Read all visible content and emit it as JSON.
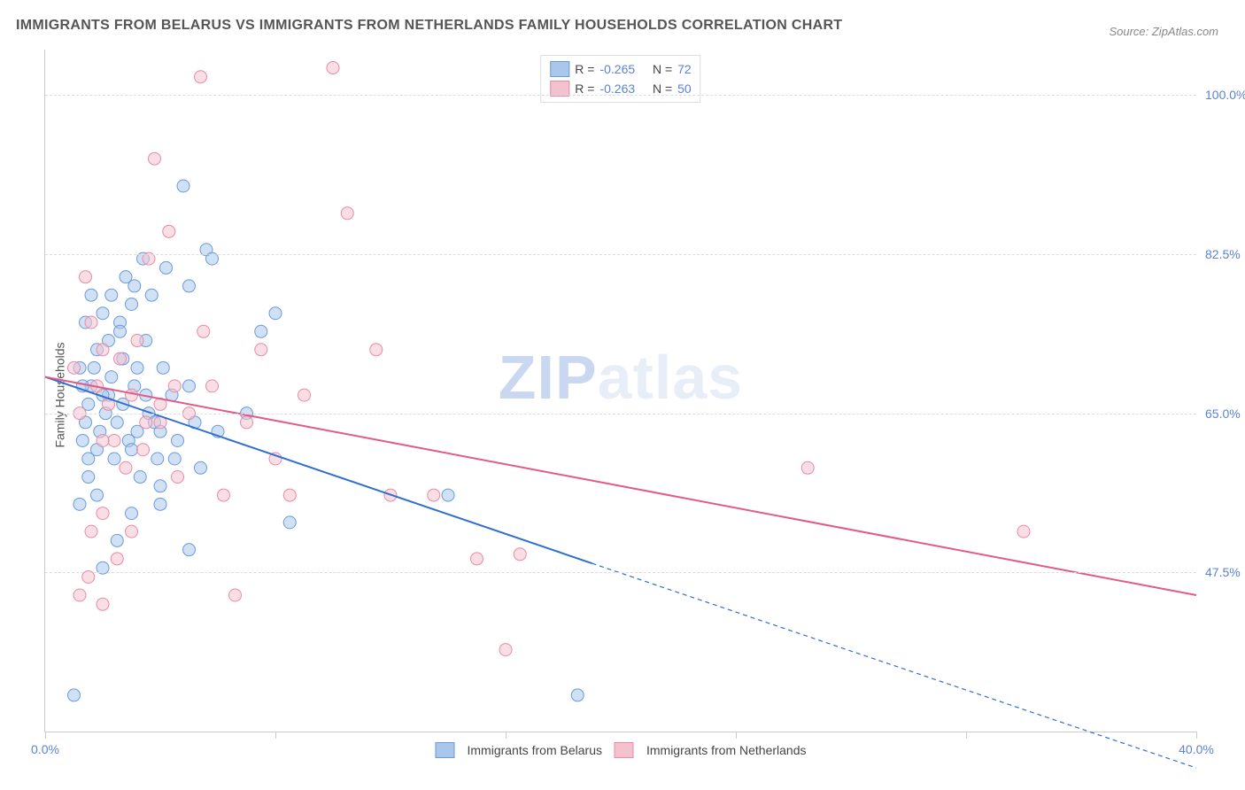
{
  "title": "IMMIGRANTS FROM BELARUS VS IMMIGRANTS FROM NETHERLANDS FAMILY HOUSEHOLDS CORRELATION CHART",
  "source": "Source: ZipAtlas.com",
  "ylabel": "Family Households",
  "watermark_a": "ZIP",
  "watermark_b": "atlas",
  "chart": {
    "type": "scatter-correlation",
    "xlim": [
      0,
      40
    ],
    "ylim": [
      30,
      105
    ],
    "yticks": [
      47.5,
      65.0,
      82.5,
      100.0
    ],
    "ytick_labels": [
      "47.5%",
      "65.0%",
      "82.5%",
      "100.0%"
    ],
    "xtick_positions": [
      0,
      8,
      16,
      24,
      32,
      40
    ],
    "xtick_labels": [
      "0.0%",
      "",
      "",
      "",
      "",
      "40.0%"
    ],
    "background_color": "#ffffff",
    "grid_color": "#dddddd",
    "marker_radius": 7,
    "marker_opacity": 0.55,
    "line_width": 2
  },
  "series": [
    {
      "name": "Immigrants from Belarus",
      "color_fill": "#a9c6ec",
      "color_stroke": "#6b9bd8",
      "line_color": "#2f6fd0",
      "R": "-0.265",
      "N": "72",
      "trend": {
        "x1": 0,
        "y1": 69,
        "x2": 19,
        "y2": 48.5,
        "x2_ext": 40,
        "y2_ext": 26
      },
      "points": [
        [
          1.0,
          34.0
        ],
        [
          1.2,
          55.0
        ],
        [
          1.3,
          62.0
        ],
        [
          1.4,
          64.0
        ],
        [
          1.5,
          66.0
        ],
        [
          1.6,
          68.0
        ],
        [
          1.7,
          70.0
        ],
        [
          1.8,
          72.0
        ],
        [
          1.9,
          63.0
        ],
        [
          2.0,
          76.0
        ],
        [
          2.1,
          65.0
        ],
        [
          2.2,
          67.0
        ],
        [
          2.3,
          78.0
        ],
        [
          2.4,
          60.0
        ],
        [
          2.5,
          64.0
        ],
        [
          2.6,
          75.0
        ],
        [
          2.7,
          66.0
        ],
        [
          2.8,
          80.0
        ],
        [
          2.9,
          62.0
        ],
        [
          3.0,
          77.0
        ],
        [
          3.1,
          68.0
        ],
        [
          3.2,
          70.0
        ],
        [
          3.3,
          58.0
        ],
        [
          3.4,
          82.0
        ],
        [
          3.5,
          73.0
        ],
        [
          3.6,
          65.0
        ],
        [
          3.7,
          78.0
        ],
        [
          3.8,
          64.0
        ],
        [
          3.9,
          60.0
        ],
        [
          4.0,
          55.0
        ],
        [
          4.2,
          81.0
        ],
        [
          4.4,
          67.0
        ],
        [
          4.6,
          62.0
        ],
        [
          4.8,
          90.0
        ],
        [
          5.0,
          68.0
        ],
        [
          5.2,
          64.0
        ],
        [
          5.4,
          59.0
        ],
        [
          5.6,
          83.0
        ],
        [
          5.8,
          82.0
        ],
        [
          6.0,
          63.0
        ],
        [
          3.0,
          61.0
        ],
        [
          3.2,
          63.0
        ],
        [
          2.0,
          48.0
        ],
        [
          2.5,
          51.0
        ],
        [
          4.0,
          63.0
        ],
        [
          4.5,
          60.0
        ],
        [
          2.2,
          73.0
        ],
        [
          2.6,
          74.0
        ],
        [
          3.0,
          54.0
        ],
        [
          1.5,
          58.0
        ],
        [
          1.8,
          56.0
        ],
        [
          2.0,
          67.0
        ],
        [
          2.3,
          69.0
        ],
        [
          2.7,
          71.0
        ],
        [
          3.1,
          79.0
        ],
        [
          3.5,
          67.0
        ],
        [
          4.1,
          70.0
        ],
        [
          5.0,
          79.0
        ],
        [
          7.0,
          65.0
        ],
        [
          7.5,
          74.0
        ],
        [
          8.0,
          76.0
        ],
        [
          4.0,
          57.0
        ],
        [
          8.5,
          53.0
        ],
        [
          14.0,
          56.0
        ],
        [
          18.5,
          34.0
        ],
        [
          5.0,
          50.0
        ],
        [
          1.5,
          60.0
        ],
        [
          1.6,
          78.0
        ],
        [
          1.4,
          75.0
        ],
        [
          1.3,
          68.0
        ],
        [
          1.2,
          70.0
        ],
        [
          1.8,
          61.0
        ]
      ]
    },
    {
      "name": "Immigrants from Netherlands",
      "color_fill": "#f4c2cf",
      "color_stroke": "#e88ba5",
      "line_color": "#e15b86",
      "R": "-0.263",
      "N": "50",
      "trend": {
        "x1": 0,
        "y1": 69,
        "x2": 40,
        "y2": 45
      },
      "points": [
        [
          1.0,
          70.0
        ],
        [
          1.2,
          65.0
        ],
        [
          1.4,
          80.0
        ],
        [
          1.6,
          75.0
        ],
        [
          1.8,
          68.0
        ],
        [
          2.0,
          72.0
        ],
        [
          2.2,
          66.0
        ],
        [
          2.4,
          62.0
        ],
        [
          2.6,
          71.0
        ],
        [
          2.8,
          59.0
        ],
        [
          3.0,
          67.0
        ],
        [
          3.2,
          73.0
        ],
        [
          3.4,
          61.0
        ],
        [
          3.6,
          82.0
        ],
        [
          3.8,
          93.0
        ],
        [
          4.0,
          64.0
        ],
        [
          4.3,
          85.0
        ],
        [
          4.6,
          58.0
        ],
        [
          5.0,
          65.0
        ],
        [
          2.0,
          54.0
        ],
        [
          5.4,
          102.0
        ],
        [
          5.8,
          68.0
        ],
        [
          6.2,
          56.0
        ],
        [
          6.6,
          45.0
        ],
        [
          7.0,
          64.0
        ],
        [
          7.5,
          72.0
        ],
        [
          8.0,
          60.0
        ],
        [
          8.5,
          56.0
        ],
        [
          9.0,
          67.0
        ],
        [
          10.0,
          103.0
        ],
        [
          10.5,
          87.0
        ],
        [
          11.5,
          72.0
        ],
        [
          12.0,
          56.0
        ],
        [
          15.0,
          49.0
        ],
        [
          16.0,
          39.0
        ],
        [
          16.5,
          49.5
        ],
        [
          13.5,
          56.0
        ],
        [
          1.5,
          47.0
        ],
        [
          2.0,
          62.0
        ],
        [
          2.5,
          49.0
        ],
        [
          3.0,
          52.0
        ],
        [
          3.5,
          64.0
        ],
        [
          4.0,
          66.0
        ],
        [
          4.5,
          68.0
        ],
        [
          26.5,
          59.0
        ],
        [
          34.0,
          52.0
        ],
        [
          5.5,
          74.0
        ],
        [
          1.2,
          45.0
        ],
        [
          1.6,
          52.0
        ],
        [
          2.0,
          44.0
        ]
      ]
    }
  ],
  "legend_top": {
    "R_label": "R =",
    "N_label": "N ="
  },
  "legend_bottom_labels": [
    "Immigrants from Belarus",
    "Immigrants from Netherlands"
  ]
}
